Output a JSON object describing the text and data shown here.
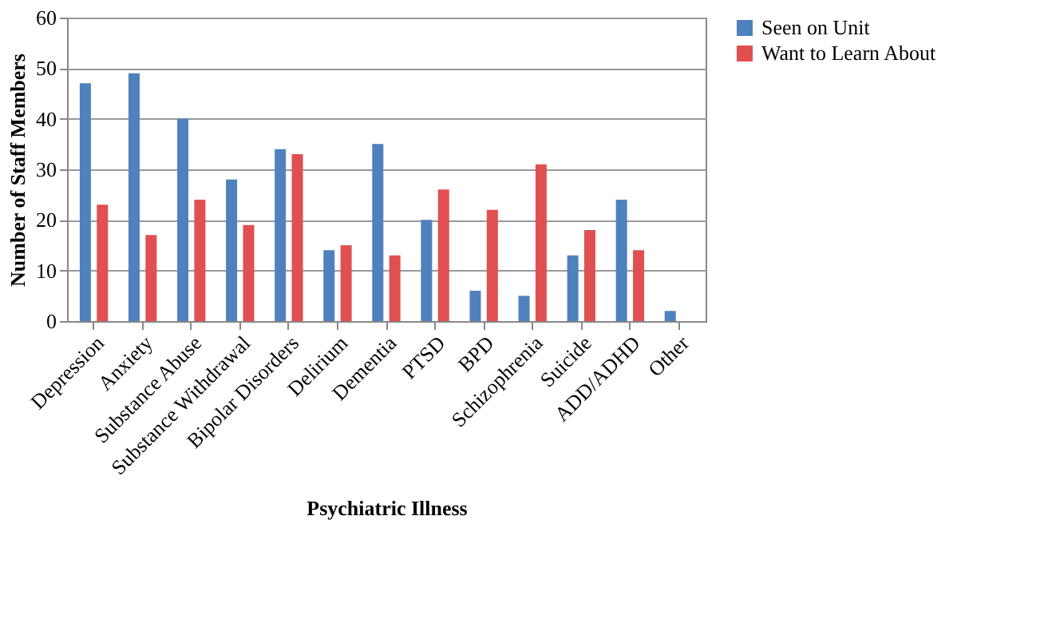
{
  "chart_data": {
    "type": "bar",
    "xlabel": "Psychiatric Illness",
    "ylabel": "Number of Staff Members",
    "categories": [
      "Depression",
      "Anxiety",
      "Substance Abuse",
      "Substance Withdrawal",
      "Bipolar Disorders",
      "Delirium",
      "Dementia",
      "PTSD",
      "BPD",
      "Schizophrenia",
      "Suicide",
      "ADD/ADHD",
      "Other"
    ],
    "series": [
      {
        "name": "Seen on Unit",
        "color": "#4f81bd",
        "values": [
          47,
          49,
          40,
          28,
          34,
          14,
          35,
          20,
          6,
          5,
          13,
          24,
          2
        ]
      },
      {
        "name": "Want to Learn About",
        "color": "#e05050",
        "values": [
          23,
          17,
          24,
          19,
          33,
          15,
          13,
          26,
          22,
          31,
          18,
          14,
          null
        ]
      }
    ],
    "ylim": [
      0,
      60
    ],
    "yticks": [
      0,
      10,
      20,
      30,
      40,
      50,
      60
    ],
    "grid": "y",
    "legend": "right"
  }
}
